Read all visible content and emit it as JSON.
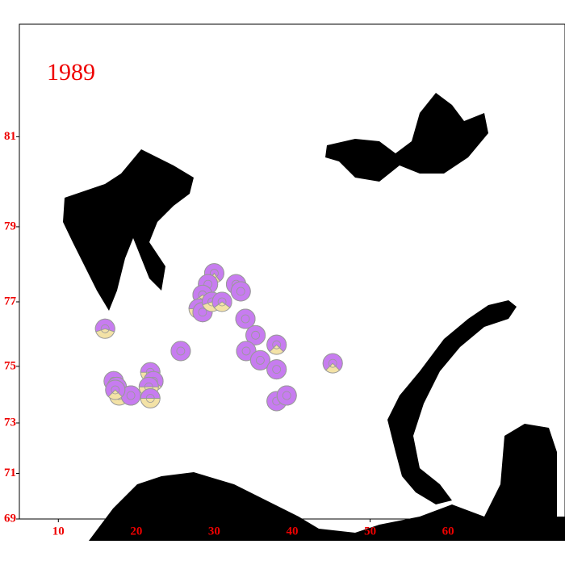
{
  "chart_data": {
    "type": "pie-map",
    "title": "1989",
    "xlim": [
      5,
      75
    ],
    "ylim": [
      69,
      83
    ],
    "xticks": [
      10,
      20,
      30,
      40,
      50,
      60
    ],
    "yticks": [
      69,
      71,
      73,
      75,
      77,
      79,
      81
    ],
    "colors": [
      "#c77cf0",
      "#f3e2a6"
    ],
    "points": {
      "lon": [
        16.0,
        25.7,
        30.0,
        29.2,
        28.5,
        28.0,
        28.5,
        29.7,
        31.0,
        32.8,
        33.4,
        34.0,
        35.3,
        34.1,
        35.9,
        38.0,
        38.0,
        38.0,
        39.3,
        45.2,
        17.1,
        17.5,
        17.8,
        19.3,
        21.8,
        22.2,
        21.6,
        21.8,
        17.3
      ],
      "lat": [
        76.2,
        75.5,
        77.8,
        77.5,
        77.2,
        76.8,
        76.7,
        77.0,
        77.0,
        77.5,
        77.3,
        76.5,
        76.0,
        75.5,
        75.2,
        75.7,
        74.9,
        73.8,
        74.0,
        75.1,
        74.5,
        74.3,
        74.0,
        74.0,
        74.8,
        74.5,
        74.3,
        73.9,
        74.2
      ],
      "share": [
        0.6,
        1,
        0.8,
        1,
        0.7,
        0.5,
        1,
        0.6,
        0.7,
        1,
        1,
        1,
        1,
        1,
        1,
        0.75,
        1,
        1,
        1,
        0.75,
        0.7,
        0.5,
        0.5,
        1,
        0.5,
        0.7,
        0.5,
        0.5,
        0.75
      ]
    }
  }
}
